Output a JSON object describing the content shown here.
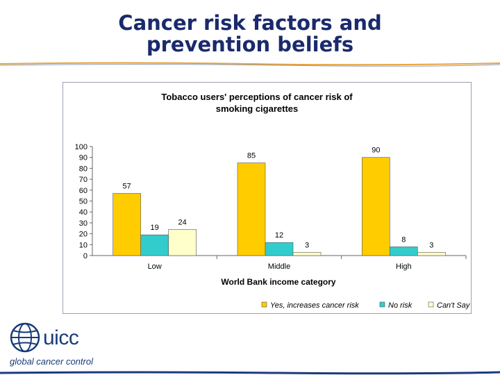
{
  "slide": {
    "title_line1": "Cancer risk factors and",
    "title_line2": "prevention beliefs",
    "accent_color": "#1a2a6c",
    "rule_color": "#e8a33c"
  },
  "logo": {
    "brand": "uicc",
    "tagline": "global cancer control",
    "icon": "globe-icon"
  },
  "chart_data": {
    "type": "bar",
    "title_line1": "Tobacco users' perceptions of cancer risk of",
    "title_line2": "smoking cigarettes",
    "xlabel": "World Bank income category",
    "ylabel": "",
    "ylim": [
      0,
      100
    ],
    "yticks": [
      "0",
      "10",
      "20",
      "30",
      "40",
      "50",
      "60",
      "70",
      "80",
      "90",
      "100"
    ],
    "categories": [
      "Low",
      "Middle",
      "High"
    ],
    "series": [
      {
        "name": "Yes, increases cancer risk",
        "values": [
          57,
          85,
          90
        ],
        "color": "#ffcc00"
      },
      {
        "name": "No risk",
        "values": [
          19,
          12,
          8
        ],
        "color": "#33cccc"
      },
      {
        "name": "Can't Say",
        "values": [
          24,
          3,
          3
        ],
        "color": "#ffffcc"
      }
    ],
    "grid": false,
    "legend_position": "bottom-right"
  }
}
